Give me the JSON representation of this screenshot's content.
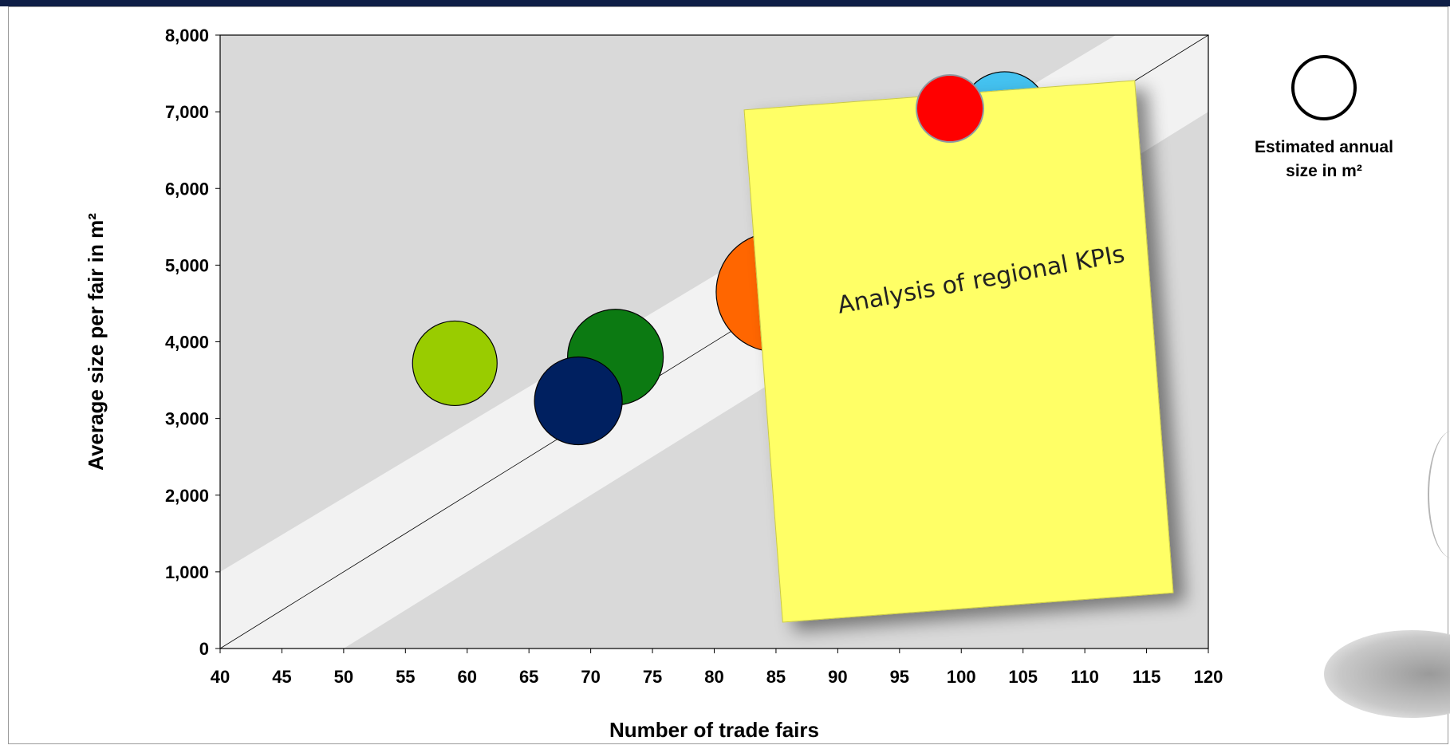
{
  "chart_data": {
    "type": "bubble",
    "xlabel": "Number of trade fairs",
    "ylabel": "Average size per fair in m²",
    "xlim": [
      40,
      120
    ],
    "ylim": [
      0,
      8000
    ],
    "x_ticks": [
      "40",
      "45",
      "50",
      "55",
      "60",
      "65",
      "70",
      "75",
      "80",
      "85",
      "90",
      "95",
      "100",
      "105",
      "110",
      "115",
      "120"
    ],
    "y_ticks": [
      "0",
      "1,000",
      "2,000",
      "3,000",
      "4,000",
      "5,000",
      "6,000",
      "7,000",
      "8,000"
    ],
    "grid": false,
    "legend_position": "right",
    "size_legend_label": "Estimated annual size in m²",
    "points": [
      {
        "x": 59,
        "y": 3720,
        "color": "#99cc00"
      },
      {
        "x": 72,
        "y": 3800,
        "color": "#0c7a12"
      },
      {
        "x": 69,
        "y": 3230,
        "color": "#002060"
      },
      {
        "x": 85,
        "y": 4650,
        "color": "#ff6600"
      },
      {
        "x": 103.5,
        "y": 6950,
        "color": "#44c2f0"
      }
    ]
  },
  "note": {
    "text": "Analysis of regional KPIs",
    "background": "#ffff66",
    "pin_color": "#ff0000"
  },
  "colors": {
    "band_background": "#d9d9d9",
    "band_light": "#f2f2f2",
    "top_bar": "#0e1e46"
  }
}
